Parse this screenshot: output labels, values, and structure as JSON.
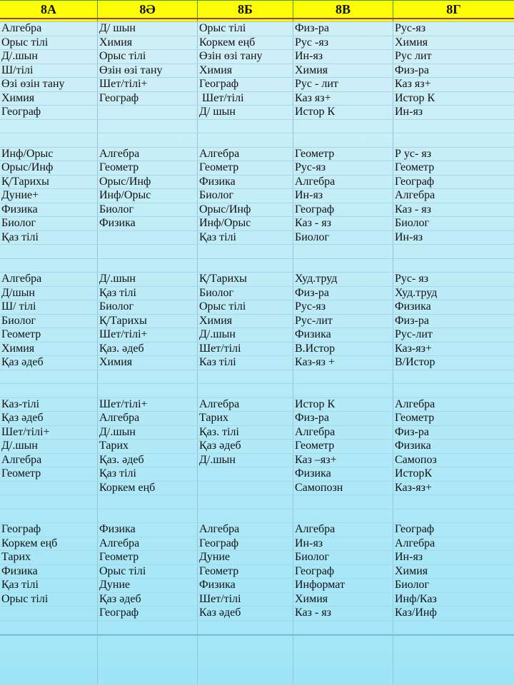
{
  "title": "Class schedule table for grades 8А–8Г",
  "colors": {
    "header_bg": "#ffff00",
    "header_grid": "#3f9e3c",
    "header_rule": "#9e3a3a",
    "grid_h": "#a6d8e8",
    "grid_v": "#96c3dc",
    "bg_top": "#d2f0f7",
    "bg_bottom": "#9fe5f7",
    "footer_line": "#6fc3d8",
    "text": "#101010"
  },
  "header": {
    "columns": [
      "8А",
      "8Ә",
      "8Б",
      "8В",
      "8Г"
    ]
  },
  "schedule": {
    "empty_rows_between_groups": 2,
    "trailing_empty_rows": 1,
    "row_groups": [
      {
        "rows": [
          [
            "Алгебра",
            "Д/ шын",
            "Орыс тілі",
            "Физ-ра",
            "Рус-яз"
          ],
          [
            "Орыс тілі",
            "Химия",
            "Коркем еңб",
            "Рус -яз",
            "Химия"
          ],
          [
            "Д/.шын",
            "Орыс тілі",
            "Өзін өзі тану",
            "Ин-яз",
            "Рус лит"
          ],
          [
            "Ш/тілі",
            "Өзін өзі тану",
            "Химия",
            "Химия",
            "Физ-ра"
          ],
          [
            "Өзі өзін тану",
            "Шет/тілі+",
            "Географ",
            "Рус - лит",
            "Каз яз+"
          ],
          [
            "Химия",
            "Географ",
            " Шет/тілі",
            "Каз яз+",
            "Истор К"
          ],
          [
            "Географ",
            "",
            "Д/ шын",
            "Истор К",
            "Ин-яз"
          ]
        ]
      },
      {
        "rows": [
          [
            "Инф/Орыс",
            "Алгебра",
            "Алгебра",
            "Геометр",
            "Р ус- яз"
          ],
          [
            "Орыс/Инф",
            "Геометр",
            "Геометр",
            "Рус-яз",
            "Геометр"
          ],
          [
            "Қ/Тарихы",
            "Орыс/Инф",
            "Физика",
            "Алгебра",
            "Географ"
          ],
          [
            "Дуние+",
            "Инф/Орыс",
            "Биолог",
            "Ин-яз",
            "Алгебра"
          ],
          [
            "Физика",
            "Биолог",
            "Орыс/Инф",
            "Географ",
            "Каз - яз"
          ],
          [
            "Биолог",
            "Физика",
            "Инф/Орыс",
            "Каз - яз",
            "Биолог"
          ],
          [
            "Қаз тілі",
            "",
            "Қаз тілі",
            "Биолог",
            "Ин-яз"
          ]
        ]
      },
      {
        "rows": [
          [
            "Алгебра",
            "Д/.шын",
            "Қ/Тарихы",
            "Худ.труд",
            "Рус- яз"
          ],
          [
            "Д/шын",
            "Қаз тілі",
            "Биолог",
            "Физ-ра",
            "Худ.труд"
          ],
          [
            "Ш/ тілі",
            "Биолог",
            "Орыс тілі",
            "Рус-яз",
            "Физика"
          ],
          [
            "Биолог",
            "Қ/Тарихы",
            "Химия",
            "Рус-лит",
            "Физ-ра"
          ],
          [
            "Геометр",
            "Шет/тілі+",
            "Д/.шын",
            "Физика",
            "Рус-лит"
          ],
          [
            "Химия",
            "Қаз. әдеб",
            "Шет/тілі",
            "В.Истор",
            "Каз-яз+"
          ],
          [
            "Қаз әдеб",
            "Химия",
            "Каз тілі",
            "Каз-яз +",
            "В/Истор"
          ]
        ]
      },
      {
        "rows": [
          [
            "Каз-тілі",
            "Шет/тілі+",
            "Алгебра",
            "Истор К",
            "Алгебра"
          ],
          [
            "Қаз әдеб",
            "Алгебра",
            "Тарих",
            "Физ-ра",
            "Геометр"
          ],
          [
            "Шет/тілі+",
            "Д/.шын",
            "Қаз. тілі",
            "Алгебра",
            "Физ-ра"
          ],
          [
            "Д/.шын",
            "Тарих",
            "Қаз әдеб",
            "Геометр",
            "Физика"
          ],
          [
            "Алгебра",
            "Қаз. әдеб",
            "Д/.шын",
            "Каз –яз+",
            "Самопоз"
          ],
          [
            "Геометр",
            "Қаз тілі",
            "",
            "Физика",
            "ИсторК"
          ],
          [
            "",
            "Коркем еңб",
            "",
            "Самопозн",
            "Каз-яз+"
          ]
        ]
      },
      {
        "rows": [
          [
            "Географ",
            "Физика",
            "Алгебра",
            "Алгебра",
            "Географ"
          ],
          [
            "Коркем еңб",
            "Алгебра",
            "Географ",
            "Ин-яз",
            "Алгебра"
          ],
          [
            "Тарих",
            "Геометр",
            "Дуние",
            "Биолог",
            "Ин-яз"
          ],
          [
            "Физика",
            "Орыс тілі",
            "Геометр",
            "Географ",
            "Химия"
          ],
          [
            "Қаз тілі",
            "Дуние",
            "Физика",
            "Информат",
            "Биолог"
          ],
          [
            "Орыс тілі",
            "Қаз әдеб",
            "Шет/тілі",
            "Химия",
            "Инф/Каз"
          ],
          [
            "",
            "Географ",
            "Каз әдеб",
            "Каз - яз",
            "Каз/Инф"
          ]
        ]
      }
    ]
  }
}
